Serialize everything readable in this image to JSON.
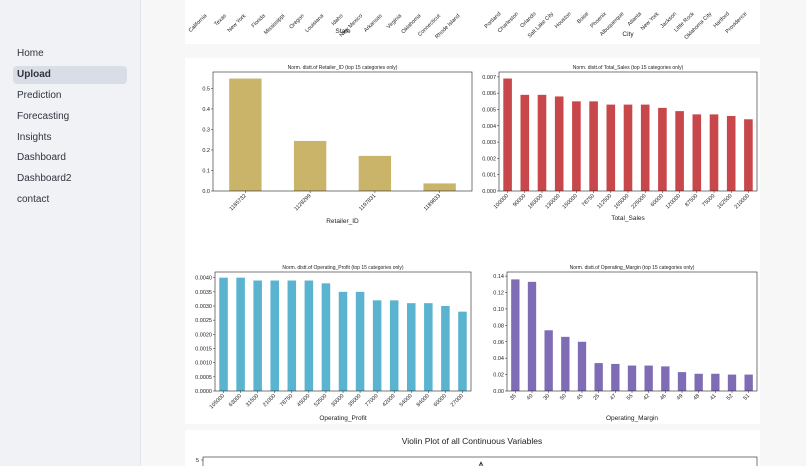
{
  "sidebar": {
    "items": [
      {
        "label": "Home",
        "active": false
      },
      {
        "label": "Upload",
        "active": true
      },
      {
        "label": "Prediction",
        "active": false
      },
      {
        "label": "Forecasting",
        "active": false
      },
      {
        "label": "Insights",
        "active": false
      },
      {
        "label": "Dashboard",
        "active": false
      },
      {
        "label": "Dashboard2",
        "active": false
      },
      {
        "label": "contact",
        "active": false
      }
    ]
  },
  "top_partial": {
    "state": {
      "xlabel": "State",
      "visible_categories": [
        "California",
        "Texas",
        "New York",
        "Florida",
        "Mississippi",
        "Oregon",
        "Louisiana",
        "Idaho",
        "New Mexico",
        "Arkansas",
        "Virginia",
        "Oklahoma",
        "Connecticut",
        "Rhode Island"
      ]
    },
    "city": {
      "xlabel": "City",
      "visible_categories": [
        "Portland",
        "Charleston",
        "Orlando",
        "Salt Lake City",
        "Houston",
        "Boise",
        "Phoenix",
        "Albuquerque",
        "Atlanta",
        "New York",
        "Jackson",
        "Little Rock",
        "Oklahoma City",
        "Hartford",
        "Providence"
      ]
    }
  },
  "violin": {
    "title": "Violin Plot of all Continuous Variables",
    "first_tick": "5"
  },
  "chart_data": [
    {
      "type": "bar",
      "title": "Norm. distt.of Retailer_ID (top 15 categories only)",
      "xlabel": "Retailer_ID",
      "color": "#c9b46a",
      "categories": [
        "1185732",
        "1128299",
        "1197831",
        "1189833"
      ],
      "values": [
        0.548,
        0.244,
        0.171,
        0.037
      ],
      "ylim": [
        0,
        0.58
      ],
      "yticks": [
        0.0,
        0.1,
        0.2,
        0.3,
        0.4,
        0.5
      ],
      "ytick_labels": [
        "0.0",
        "0.1",
        "0.2",
        "0.3",
        "0.4",
        "0.5"
      ]
    },
    {
      "type": "bar",
      "title": "Norm. distt.of Total_Sales (top 15 categories only)",
      "xlabel": "Total_Sales",
      "color": "#c8474b",
      "categories": [
        "100000",
        "90000",
        "180000",
        "130000",
        "150000",
        "78750",
        "112500",
        "165000",
        "225000",
        "60000",
        "120000",
        "87500",
        "75000",
        "162500",
        "210000"
      ],
      "values": [
        0.0069,
        0.0059,
        0.0059,
        0.0058,
        0.0055,
        0.0055,
        0.0053,
        0.0053,
        0.0053,
        0.0051,
        0.0049,
        0.0047,
        0.0047,
        0.0046,
        0.0044
      ],
      "ylim": [
        0,
        0.0073
      ],
      "yticks": [
        0,
        0.001,
        0.002,
        0.003,
        0.004,
        0.005,
        0.006,
        0.007
      ],
      "ytick_labels": [
        "0.000",
        "0.001",
        "0.002",
        "0.003",
        "0.004",
        "0.005",
        "0.006",
        "0.007"
      ]
    },
    {
      "type": "bar",
      "title": "Norm. distt.of Operating_Profit (top 15 categories only)",
      "xlabel": "Operating_Profit",
      "color": "#5ab4cf",
      "categories": [
        "105000",
        "63000",
        "31500",
        "21000",
        "78750",
        "45000",
        "52500",
        "30000",
        "35000",
        "77000",
        "42000",
        "54000",
        "84000",
        "60000",
        "27000"
      ],
      "values": [
        0.004,
        0.004,
        0.0039,
        0.0039,
        0.0039,
        0.0039,
        0.0038,
        0.0035,
        0.0035,
        0.0032,
        0.0032,
        0.0031,
        0.0031,
        0.003,
        0.0028
      ],
      "ylim": [
        0,
        0.0042
      ],
      "yticks": [
        0,
        0.0005,
        0.001,
        0.0015,
        0.002,
        0.0025,
        0.003,
        0.0035,
        0.004
      ],
      "ytick_labels": [
        "0.0000",
        "0.0005",
        "0.0010",
        "0.0015",
        "0.0020",
        "0.0025",
        "0.0030",
        "0.0035",
        "0.0040"
      ]
    },
    {
      "type": "bar",
      "title": "Norm. distt.of Operating_Margin (top 15 categories only)",
      "xlabel": "Operating_Margin",
      "color": "#7e6cb4",
      "categories": [
        "35",
        "40",
        "30",
        "50",
        "45",
        "25",
        "47",
        "55",
        "42",
        "46",
        "49",
        "48",
        "41",
        "52",
        "51"
      ],
      "values": [
        0.136,
        0.133,
        0.074,
        0.066,
        0.06,
        0.034,
        0.033,
        0.031,
        0.031,
        0.03,
        0.023,
        0.021,
        0.021,
        0.02,
        0.02
      ],
      "ylim": [
        0,
        0.145
      ],
      "yticks": [
        0,
        0.02,
        0.04,
        0.06,
        0.08,
        0.1,
        0.12,
        0.14
      ],
      "ytick_labels": [
        "0.00",
        "0.02",
        "0.04",
        "0.06",
        "0.08",
        "0.10",
        "0.12",
        "0.14"
      ]
    }
  ]
}
